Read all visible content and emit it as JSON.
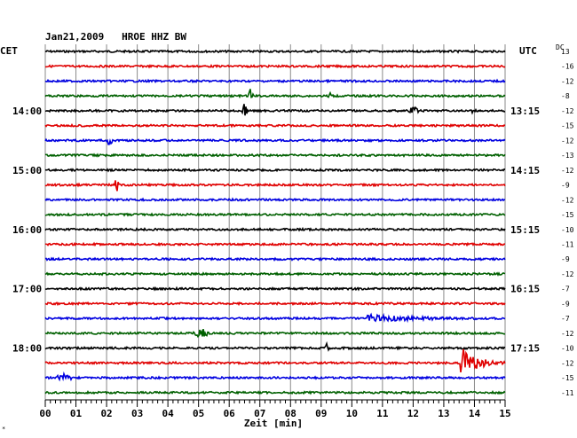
{
  "chart_data": {
    "type": "line",
    "title": "Jan21,2009   HROE HHZ BW",
    "left_axis_label": "CET",
    "right_axis_label": "UTC",
    "offset_header": "DC",
    "xlabel": "Zeit [min]",
    "xlim": [
      0,
      15
    ],
    "x_ticks": [
      "00",
      "01",
      "02",
      "03",
      "04",
      "05",
      "06",
      "07",
      "08",
      "09",
      "10",
      "11",
      "12",
      "13",
      "14",
      "15"
    ],
    "grid": true,
    "trace_colors": [
      "#000000",
      "#e00000",
      "#0000e0",
      "#006000"
    ],
    "traces": [
      {
        "cet": "",
        "utc": "",
        "dc": "13",
        "events": []
      },
      {
        "cet": "",
        "utc": "",
        "dc": "-16",
        "events": []
      },
      {
        "cet": "",
        "utc": "",
        "dc": "-12",
        "events": []
      },
      {
        "cet": "",
        "utc": "",
        "dc": "-8",
        "events": [
          {
            "t": 6.6,
            "amp": 7,
            "dur": 0.2
          },
          {
            "t": 9.2,
            "amp": 4,
            "dur": 0.15
          }
        ]
      },
      {
        "cet": "14:00",
        "utc": "13:15",
        "dc": "-12",
        "events": [
          {
            "t": 6.4,
            "amp": 8,
            "dur": 0.2
          },
          {
            "t": 11.8,
            "amp": 4,
            "dur": 0.4
          },
          {
            "t": 13.9,
            "amp": 4,
            "dur": 0.15
          }
        ]
      },
      {
        "cet": "",
        "utc": "",
        "dc": "-15",
        "events": []
      },
      {
        "cet": "",
        "utc": "",
        "dc": "-12",
        "events": [
          {
            "t": 2.0,
            "amp": 5,
            "dur": 0.2
          }
        ]
      },
      {
        "cet": "",
        "utc": "",
        "dc": "-13",
        "events": []
      },
      {
        "cet": "15:00",
        "utc": "14:15",
        "dc": "-12",
        "events": []
      },
      {
        "cet": "",
        "utc": "",
        "dc": "-9",
        "events": [
          {
            "t": 2.25,
            "amp": 7,
            "dur": 0.15
          }
        ]
      },
      {
        "cet": "",
        "utc": "",
        "dc": "-12",
        "events": []
      },
      {
        "cet": "",
        "utc": "",
        "dc": "-15",
        "events": []
      },
      {
        "cet": "16:00",
        "utc": "15:15",
        "dc": "-10",
        "events": []
      },
      {
        "cet": "",
        "utc": "",
        "dc": "-11",
        "events": []
      },
      {
        "cet": "",
        "utc": "",
        "dc": "-9",
        "events": []
      },
      {
        "cet": "",
        "utc": "",
        "dc": "-12",
        "events": []
      },
      {
        "cet": "17:00",
        "utc": "16:15",
        "dc": "-7",
        "events": []
      },
      {
        "cet": "",
        "utc": "",
        "dc": "-9",
        "events": []
      },
      {
        "cet": "",
        "utc": "",
        "dc": "-7",
        "events": [
          {
            "t": 10.5,
            "amp": 4,
            "dur": 4.0
          }
        ]
      },
      {
        "cet": "",
        "utc": "",
        "dc": "-12",
        "events": [
          {
            "t": 4.8,
            "amp": 4,
            "dur": 0.6
          }
        ]
      },
      {
        "cet": "18:00",
        "utc": "17:15",
        "dc": "-10",
        "events": [
          {
            "t": 9.1,
            "amp": 5,
            "dur": 0.15
          }
        ]
      },
      {
        "cet": "",
        "utc": "",
        "dc": "-12",
        "events": [
          {
            "t": 13.55,
            "amp": 18,
            "dur": 1.45
          }
        ]
      },
      {
        "cet": "",
        "utc": "",
        "dc": "-15",
        "events": [
          {
            "t": 0.3,
            "amp": 4,
            "dur": 0.6
          }
        ]
      },
      {
        "cet": "",
        "utc": "",
        "dc": "-11",
        "events": []
      }
    ]
  }
}
